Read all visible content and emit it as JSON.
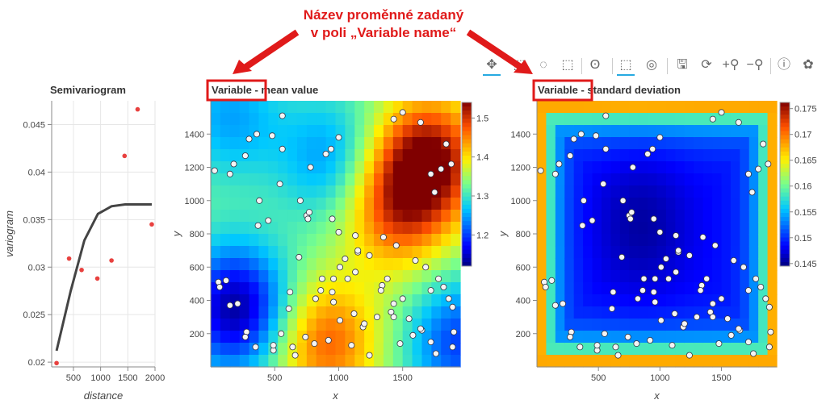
{
  "annotation": {
    "line1": "Název proměnné zadaný",
    "line2": "v poli „Variable name“"
  },
  "highlight_word": "Variable",
  "toolbar": {
    "tools": [
      "pan-icon",
      "box-zoom-icon",
      "lasso-icon",
      "box-select-icon",
      "tap-icon",
      "crosshair-select-icon",
      "hover-icon",
      "save-icon",
      "reset-icon",
      "wheel-zoom-in-icon",
      "wheel-zoom-out-icon",
      "help-icon",
      "bokeh-logo-icon"
    ]
  },
  "chart_data": [
    {
      "type": "scatter",
      "title": "Semivariogram",
      "xlabel": "distance",
      "ylabel": "variogram",
      "xlim": [
        100,
        2000
      ],
      "ylim": [
        0.0195,
        0.0475
      ],
      "xticks": [
        "500",
        "1000",
        "1500",
        "2000"
      ],
      "yticks": [
        "0.02",
        "0.025",
        "0.03",
        "0.035",
        "0.04",
        "0.045"
      ],
      "grid": true,
      "series": [
        {
          "kind": "points",
          "color": "#e8413f",
          "x": [
            190,
            420,
            650,
            940,
            1200,
            1440,
            1680,
            1940
          ],
          "y": [
            0.0199,
            0.0309,
            0.0297,
            0.0288,
            0.0307,
            0.0417,
            0.0466,
            0.0345
          ]
        },
        {
          "kind": "line",
          "color": "#444444",
          "x": [
            190,
            450,
            700,
            950,
            1200,
            1450,
            1700,
            1940
          ],
          "y": [
            0.0212,
            0.0275,
            0.0328,
            0.0356,
            0.0364,
            0.0366,
            0.0366,
            0.0366
          ]
        }
      ]
    },
    {
      "type": "heatmap",
      "title": "Variable - mean value",
      "xlabel": "x",
      "ylabel": "y",
      "xlim": [
        0,
        1950
      ],
      "ylim": [
        0,
        1600
      ],
      "xticks": [
        "500",
        "1000",
        "1500"
      ],
      "yticks": [
        "200",
        "400",
        "600",
        "800",
        "1000",
        "1200",
        "1400"
      ],
      "colorbar": {
        "ticks": [
          "1.2",
          "1.3",
          "1.4",
          "1.5"
        ],
        "range": [
          1.12,
          1.54
        ]
      },
      "blobs": [
        {
          "x": 1700,
          "y": 1250,
          "v": 1.53
        },
        {
          "x": 1450,
          "y": 950,
          "v": 1.47
        },
        {
          "x": 900,
          "y": 150,
          "v": 1.47
        },
        {
          "x": 200,
          "y": 350,
          "v": 1.13
        },
        {
          "x": 950,
          "y": 1250,
          "v": 1.24
        },
        {
          "x": 150,
          "y": 1500,
          "v": 1.25
        },
        {
          "x": 1950,
          "y": 150,
          "v": 1.2
        }
      ],
      "base": 1.33
    },
    {
      "type": "heatmap",
      "title": "Variable - standard deviation",
      "xlabel": "x",
      "ylabel": "y",
      "xlim": [
        0,
        1950
      ],
      "ylim": [
        0,
        1600
      ],
      "xticks": [
        "500",
        "1000",
        "1500"
      ],
      "yticks": [
        "200",
        "400",
        "600",
        "800",
        "1000",
        "1200",
        "1400"
      ],
      "colorbar": {
        "ticks": [
          "0.145",
          "0.15",
          "0.155",
          "0.16",
          "0.165",
          "0.17",
          "0.175"
        ],
        "range": [
          0.1445,
          0.1762
        ]
      },
      "kind": "edge",
      "base": 0.1485,
      "interior_low": 0.1455
    }
  ],
  "sample_points": {
    "x": [
      30,
      150,
      180,
      270,
      480,
      300,
      360,
      540,
      700,
      750,
      760,
      950,
      1000,
      1130,
      1150,
      1350,
      1450,
      1600,
      1680,
      1750,
      1720,
      1800,
      1880,
      1840,
      1640,
      1500,
      1430,
      560,
      560,
      380,
      370,
      450,
      940,
      1000,
      900,
      770,
      780,
      690,
      1050,
      1150,
      1240,
      1010,
      820,
      860,
      870,
      960,
      1130,
      1340,
      1300,
      1190,
      1580,
      1650,
      1720,
      1820,
      1500,
      1430,
      1890,
      1860,
      1380,
      1200,
      920,
      810,
      740,
      640,
      660,
      490,
      120,
      60,
      70,
      150,
      210,
      280,
      270,
      350,
      490,
      550,
      610,
      620,
      950,
      960,
      1010,
      1120,
      1550,
      1640,
      1480,
      1240,
      1100,
      1070,
      1330,
      1410,
      1430,
      1900,
      1890,
      1760,
      1780,
      1720
    ],
    "y": [
      1180,
      1160,
      1220,
      1270,
      1390,
      1370,
      1400,
      1100,
      1000,
      910,
      890,
      890,
      810,
      790,
      690,
      780,
      730,
      640,
      600,
      1050,
      1160,
      1190,
      1220,
      1340,
      1470,
      1530,
      1490,
      1510,
      1310,
      1000,
      850,
      880,
      1310,
      1380,
      1280,
      930,
      1200,
      660,
      650,
      700,
      670,
      600,
      410,
      460,
      530,
      530,
      570,
      490,
      300,
      240,
      190,
      220,
      150,
      480,
      410,
      380,
      360,
      410,
      530,
      260,
      160,
      140,
      180,
      120,
      70,
      100,
      520,
      510,
      480,
      370,
      380,
      210,
      180,
      120,
      130,
      200,
      350,
      450,
      450,
      390,
      280,
      320,
      290,
      230,
      140,
      70,
      130,
      530,
      460,
      330,
      300,
      210,
      120,
      80,
      530,
      460
    ]
  }
}
